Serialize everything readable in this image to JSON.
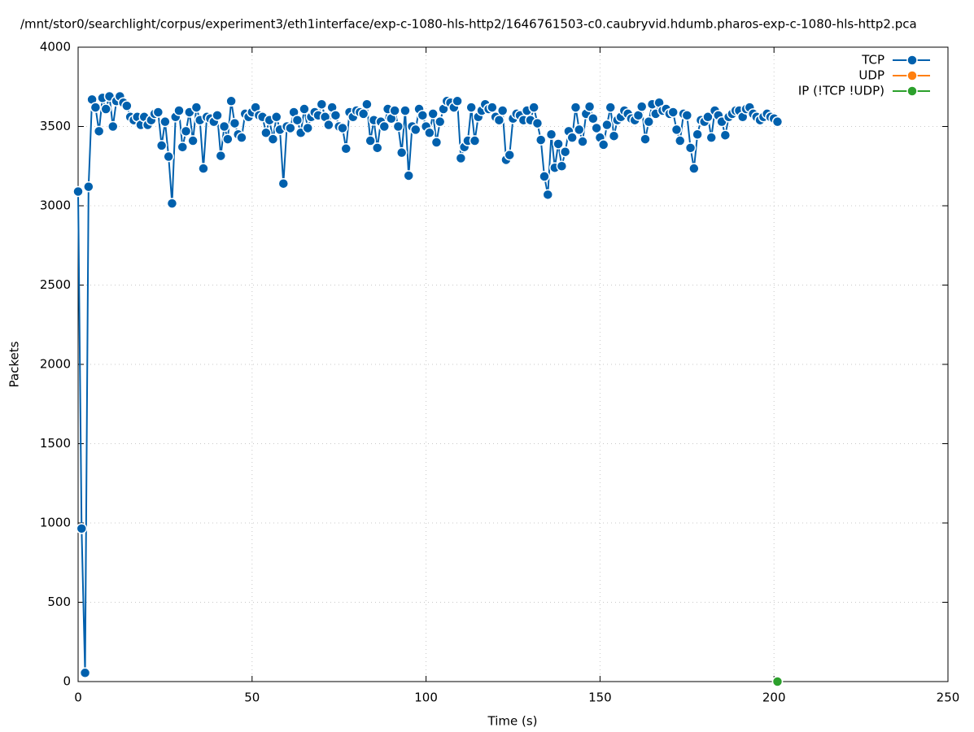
{
  "chart_data": {
    "type": "line",
    "title": "/mnt/stor0/searchlight/corpus/experiment3/eth1interface/exp-c-1080-hls-http2/1646761503-c0.caubryvid.hdumb.pharos-exp-c-1080-hls-http2.pca",
    "xlabel": "Time (s)",
    "ylabel": "Packets",
    "xlim": [
      0,
      250
    ],
    "xticks": [
      0,
      50,
      100,
      150,
      200,
      250
    ],
    "ylim": [
      0,
      4000
    ],
    "yticks": [
      0,
      500,
      1000,
      1500,
      2000,
      2500,
      3000,
      3500,
      4000
    ],
    "grid": true,
    "legend": "top-right",
    "series": [
      {
        "name": "TCP",
        "color": "#0060ad",
        "x": [
          0,
          1,
          2,
          3,
          4,
          5,
          6,
          7,
          8,
          9,
          10,
          11,
          12,
          13,
          14,
          15,
          16,
          17,
          18,
          19,
          20,
          21,
          22,
          23,
          24,
          25,
          26,
          27,
          28,
          29,
          30,
          31,
          32,
          33,
          34,
          35,
          36,
          37,
          38,
          39,
          40,
          41,
          42,
          43,
          44,
          45,
          46,
          47,
          48,
          49,
          50,
          51,
          52,
          53,
          54,
          55,
          56,
          57,
          58,
          59,
          60,
          61,
          62,
          63,
          64,
          65,
          66,
          67,
          68,
          69,
          70,
          71,
          72,
          73,
          74,
          75,
          76,
          77,
          78,
          79,
          80,
          81,
          82,
          83,
          84,
          85,
          86,
          87,
          88,
          89,
          90,
          91,
          92,
          93,
          94,
          95,
          96,
          97,
          98,
          99,
          100,
          101,
          102,
          103,
          104,
          105,
          106,
          107,
          108,
          109,
          110,
          111,
          112,
          113,
          114,
          115,
          116,
          117,
          118,
          119,
          120,
          121,
          122,
          123,
          124,
          125,
          126,
          127,
          128,
          129,
          130,
          131,
          132,
          133,
          134,
          135,
          136,
          137,
          138,
          139,
          140,
          141,
          142,
          143,
          144,
          145,
          146,
          147,
          148,
          149,
          150,
          151,
          152,
          153,
          154,
          155,
          156,
          157,
          158,
          159,
          160,
          161,
          162,
          163,
          164,
          165,
          166,
          167,
          168,
          169,
          170,
          171,
          172,
          173,
          174,
          175,
          176,
          177,
          178,
          179,
          180,
          181,
          182,
          183,
          184,
          185,
          186,
          187,
          188,
          189,
          190,
          191,
          192,
          193,
          194,
          195,
          196,
          197,
          198,
          199,
          200,
          201
        ],
        "values": [
          3090,
          965,
          55,
          3120,
          3670,
          3620,
          3470,
          3680,
          3610,
          3690,
          3500,
          3660,
          3690,
          3650,
          3630,
          3560,
          3540,
          3560,
          3510,
          3560,
          3510,
          3540,
          3580,
          3590,
          3380,
          3530,
          3310,
          3015,
          3560,
          3600,
          3370,
          3470,
          3590,
          3410,
          3620,
          3540,
          3235,
          3560,
          3550,
          3530,
          3570,
          3315,
          3500,
          3420,
          3660,
          3520,
          3450,
          3430,
          3580,
          3560,
          3590,
          3620,
          3570,
          3560,
          3460,
          3540,
          3420,
          3560,
          3480,
          3140,
          3500,
          3490,
          3590,
          3540,
          3460,
          3610,
          3490,
          3560,
          3590,
          3570,
          3640,
          3560,
          3510,
          3620,
          3570,
          3500,
          3490,
          3360,
          3590,
          3560,
          3600,
          3590,
          3580,
          3640,
          3410,
          3540,
          3365,
          3530,
          3500,
          3610,
          3550,
          3600,
          3500,
          3335,
          3600,
          3190,
          3500,
          3480,
          3610,
          3570,
          3500,
          3460,
          3580,
          3400,
          3530,
          3610,
          3660,
          3650,
          3620,
          3660,
          3300,
          3370,
          3410,
          3620,
          3410,
          3560,
          3600,
          3640,
          3610,
          3620,
          3560,
          3540,
          3600,
          3290,
          3320,
          3550,
          3580,
          3570,
          3540,
          3600,
          3540,
          3620,
          3520,
          3415,
          3185,
          3070,
          3450,
          3240,
          3390,
          3250,
          3340,
          3470,
          3430,
          3620,
          3480,
          3405,
          3580,
          3625,
          3550,
          3490,
          3430,
          3385,
          3510,
          3620,
          3440,
          3540,
          3560,
          3600,
          3580,
          3550,
          3540,
          3570,
          3625,
          3420,
          3530,
          3640,
          3580,
          3650,
          3600,
          3610,
          3580,
          3590,
          3480,
          3410,
          3580,
          3570,
          3365,
          3235,
          3450,
          3540,
          3530,
          3560,
          3430,
          3600,
          3570,
          3530,
          3445,
          3560,
          3580,
          3600,
          3600,
          3560,
          3610,
          3620,
          3580,
          3560,
          3540,
          3560,
          3580,
          3560,
          3550,
          3530
        ]
      },
      {
        "name": "UDP",
        "color": "#ff7f0e",
        "x": [
          201
        ],
        "values": [
          0
        ]
      },
      {
        "name": "IP (!TCP  !UDP)",
        "color": "#2ca02c",
        "x": [
          201
        ],
        "values": [
          0
        ]
      }
    ]
  }
}
